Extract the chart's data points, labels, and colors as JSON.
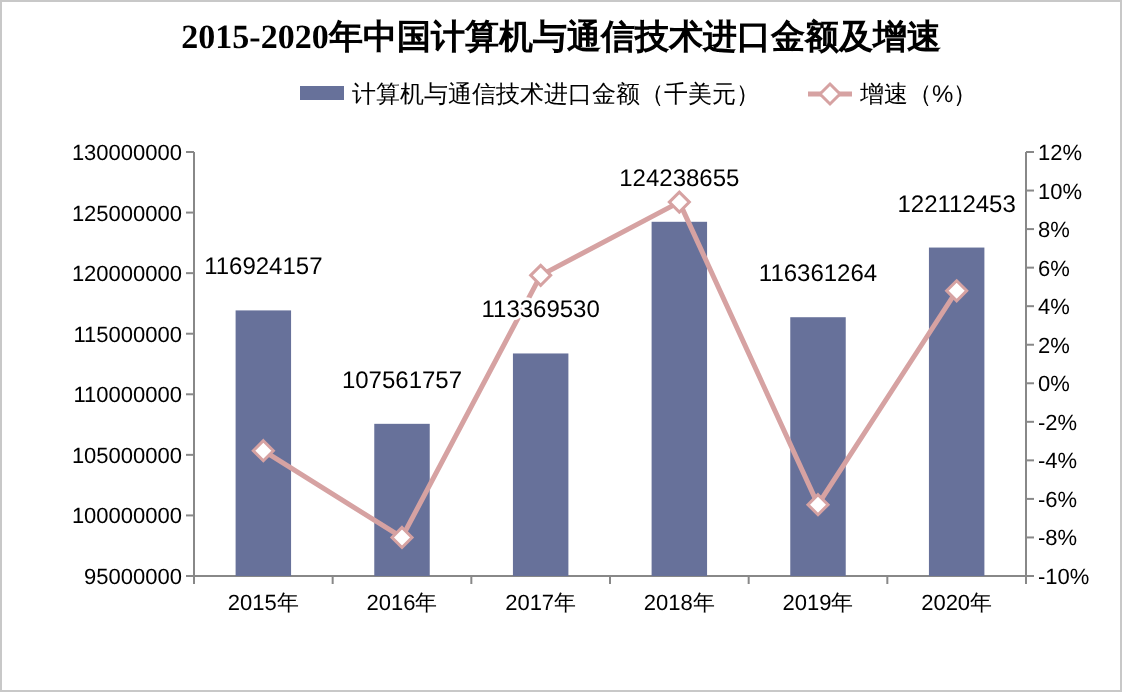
{
  "chart_data": {
    "type": "bar",
    "title": "2015-2020年中国计算机与通信技术进口金额及增速",
    "categories": [
      "2015年",
      "2016年",
      "2017年",
      "2018年",
      "2019年",
      "2020年"
    ],
    "series": [
      {
        "name": "计算机与通信技术进口金额（千美元）",
        "color": "#67719a",
        "values": [
          116924157,
          107561757,
          113369530,
          124238655,
          116361264,
          122112453
        ],
        "data_labels": true
      },
      {
        "name": "增速（%）",
        "type": "line",
        "axis": "y2",
        "color": "#d6a2a2",
        "marker": "diamond",
        "values": [
          -3.5,
          -8.0,
          5.6,
          9.4,
          -6.3,
          4.8
        ]
      }
    ],
    "ylim": [
      95000000,
      130000000
    ],
    "yticks": [
      95000000,
      100000000,
      105000000,
      110000000,
      115000000,
      120000000,
      125000000,
      130000000
    ],
    "y2lim": [
      -10,
      12
    ],
    "y2ticks": [
      {
        "value": -10,
        "label": "-10%"
      },
      {
        "value": -8,
        "label": "-8%"
      },
      {
        "value": -6,
        "label": "-6%"
      },
      {
        "value": -4,
        "label": "-4%"
      },
      {
        "value": -2,
        "label": "-2%"
      },
      {
        "value": 0,
        "label": "0%"
      },
      {
        "value": 2,
        "label": "2%"
      },
      {
        "value": 4,
        "label": "4%"
      },
      {
        "value": 6,
        "label": "6%"
      },
      {
        "value": 8,
        "label": "8%"
      },
      {
        "value": 10,
        "label": "10%"
      },
      {
        "value": 12,
        "label": "12%"
      }
    ],
    "grid": false,
    "legend": "top"
  }
}
